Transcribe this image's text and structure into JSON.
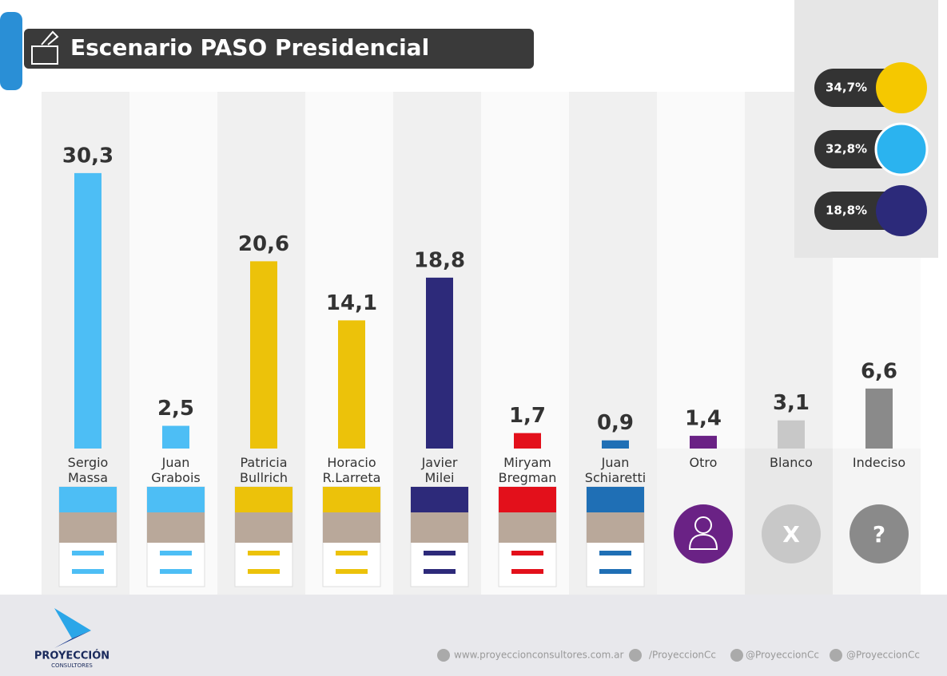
{
  "header": {
    "title": "Escenario PASO Presidencial"
  },
  "chart_data": {
    "type": "bar",
    "categories": [
      "Sergio\nMassa",
      "Juan\nGrabois",
      "Patricia\nBullrich",
      "Horacio\nR.Larreta",
      "Javier\nMilei",
      "Miryam\nBregman",
      "Juan\nSchiaretti",
      "Otro",
      "Blanco",
      "Indeciso"
    ],
    "values": [
      30.3,
      2.5,
      20.6,
      14.1,
      18.8,
      1.7,
      0.9,
      1.4,
      3.1,
      6.6
    ],
    "value_labels": [
      "30,3",
      "2,5",
      "20,6",
      "14,1",
      "18,8",
      "1,7",
      "0,9",
      "1,4",
      "3,1",
      "6,6"
    ],
    "colors": [
      "#4dbef5",
      "#4dbef5",
      "#ecc20a",
      "#ecc20a",
      "#2d2a7a",
      "#e3101b",
      "#1f6fb5",
      "#6a2285",
      "#c8c8c8",
      "#8a8a8a"
    ]
  },
  "alliances": [
    "34,7%",
    "32,8%",
    "18,8%"
  ],
  "icons": {
    "blank": "X",
    "undecided": "?"
  },
  "footer": {
    "brand": "PROYECCIÓN",
    "brand_sub": "CONSULTORES",
    "website": "www.proyeccionconsultores.com.ar",
    "facebook": "/ProyeccionCc",
    "twitter": "@ProyeccionCc",
    "instagram": "@ProyeccionCc"
  }
}
